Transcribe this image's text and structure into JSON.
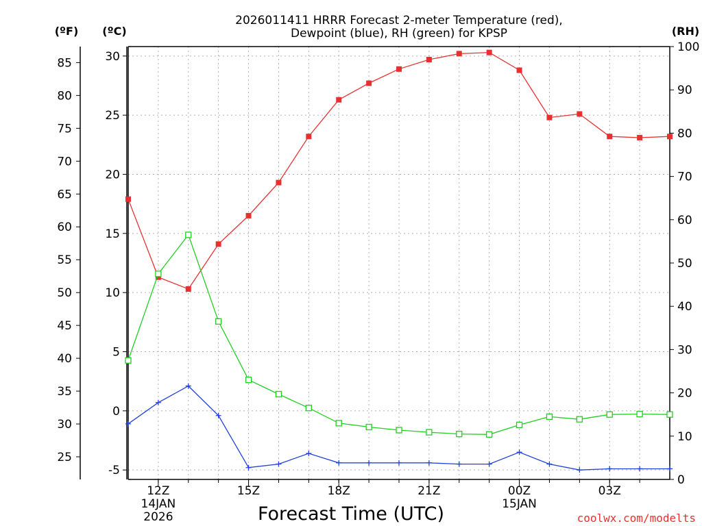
{
  "chart_data": {
    "type": "line",
    "title_line1": "2026011411 HRRR Forecast 2-meter Temperature (red),",
    "title_line2": "Dewpoint (blue), RH (green) for KPSP",
    "xlabel": "Forecast Time (UTC)",
    "unit_f": "(ºF)",
    "unit_c": "(ºC)",
    "unit_rh": "(RH)",
    "watermark": "coolwx.com/modelts",
    "x_hours": [
      11,
      12,
      13,
      14,
      15,
      16,
      17,
      18,
      19,
      20,
      21,
      22,
      23,
      24,
      25,
      26,
      27,
      28,
      29
    ],
    "x_ticks": [
      {
        "hour": 12,
        "label": "12Z",
        "sub1": "14JAN",
        "sub2": "2026"
      },
      {
        "hour": 15,
        "label": "15Z",
        "sub1": "",
        "sub2": ""
      },
      {
        "hour": 18,
        "label": "18Z",
        "sub1": "",
        "sub2": ""
      },
      {
        "hour": 21,
        "label": "21Z",
        "sub1": "",
        "sub2": ""
      },
      {
        "hour": 24,
        "label": "00Z",
        "sub1": "15JAN",
        "sub2": ""
      },
      {
        "hour": 27,
        "label": "03Z",
        "sub1": "",
        "sub2": ""
      }
    ],
    "xlim": [
      11,
      29
    ],
    "celsius_ylim": [
      -5.8,
      30.8
    ],
    "celsius_ticks": [
      -5,
      0,
      5,
      10,
      15,
      20,
      25,
      30
    ],
    "fahrenheit_ticks": [
      25,
      30,
      35,
      40,
      45,
      50,
      55,
      60,
      65,
      70,
      75,
      80,
      85
    ],
    "rh_ylim": [
      0,
      100
    ],
    "rh_ticks": [
      0,
      10,
      20,
      30,
      40,
      50,
      60,
      70,
      80,
      90,
      100
    ],
    "series": [
      {
        "name": "Temperature",
        "axis": "celsius",
        "color": "#e83030",
        "marker": "filled-square",
        "values": [
          17.9,
          11.3,
          10.3,
          14.1,
          16.5,
          19.3,
          23.2,
          26.3,
          27.7,
          28.9,
          29.7,
          30.2,
          30.3,
          28.8,
          24.8,
          25.1,
          23.2,
          23.1,
          23.2
        ]
      },
      {
        "name": "Dewpoint",
        "axis": "celsius",
        "color": "#2040e0",
        "marker": "plus",
        "values": [
          -1.1,
          0.7,
          2.1,
          -0.4,
          -4.8,
          -4.5,
          -3.6,
          -4.4,
          -4.4,
          -4.4,
          -4.4,
          -4.5,
          -4.5,
          -3.5,
          -4.5,
          -5.0,
          -4.9,
          -4.9,
          -4.9
        ]
      },
      {
        "name": "RH",
        "axis": "rh",
        "color": "#20d020",
        "marker": "open-square",
        "values": [
          27.5,
          47.5,
          56.5,
          36.5,
          23.0,
          19.7,
          16.5,
          13.0,
          12.1,
          11.4,
          10.9,
          10.5,
          10.4,
          12.6,
          14.5,
          13.9,
          15.0,
          15.1,
          15.0
        ]
      }
    ]
  }
}
